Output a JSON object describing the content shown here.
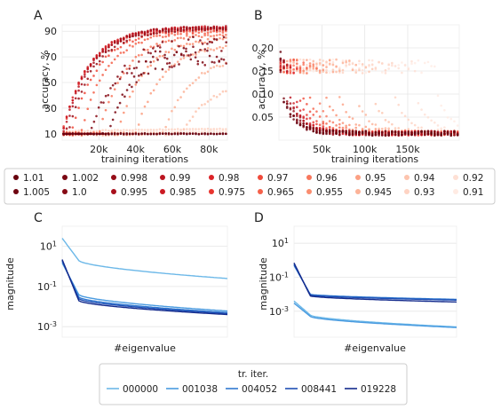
{
  "legend_top": {
    "entries": [
      {
        "label": "1.01",
        "color": "#67000d"
      },
      {
        "label": "1.005",
        "color": "#6e0410"
      },
      {
        "label": "1.002",
        "color": "#7a0712"
      },
      {
        "label": "1.0",
        "color": "#860a15"
      },
      {
        "label": "0.998",
        "color": "#960d18"
      },
      {
        "label": "0.995",
        "color": "#a8101c"
      },
      {
        "label": "0.99",
        "color": "#bb1420"
      },
      {
        "label": "0.985",
        "color": "#cb1a23"
      },
      {
        "label": "0.98",
        "color": "#dc2328"
      },
      {
        "label": "0.975",
        "color": "#e8342e"
      },
      {
        "label": "0.97",
        "color": "#f04a3a"
      },
      {
        "label": "0.965",
        "color": "#f5614a"
      },
      {
        "label": "0.96",
        "color": "#f8775c"
      },
      {
        "label": "0.955",
        "color": "#fa8d6f"
      },
      {
        "label": "0.95",
        "color": "#fca083"
      },
      {
        "label": "0.945",
        "color": "#fcb398"
      },
      {
        "label": "0.94",
        "color": "#fdc4ae"
      },
      {
        "label": "0.93",
        "color": "#fed3c3"
      },
      {
        "label": "0.92",
        "color": "#fee0d4"
      },
      {
        "label": "0.91",
        "color": "#ffebe3"
      }
    ]
  },
  "legend_bottom": {
    "title": "tr. iter.",
    "entries": [
      {
        "label": "000000",
        "color": "#6cb8e8"
      },
      {
        "label": "001038",
        "color": "#4a9be0"
      },
      {
        "label": "004052",
        "color": "#2f78d0"
      },
      {
        "label": "008441",
        "color": "#1f4fb4"
      },
      {
        "label": "019228",
        "color": "#132a8c"
      }
    ]
  },
  "chart_data": [
    {
      "panel": "A",
      "type": "scatter",
      "xlabel": "training iterations",
      "ylabel": "accuracy, %",
      "xlim": [
        0,
        90000
      ],
      "ylim": [
        5,
        95
      ],
      "xticks": [
        "20k",
        "40k",
        "60k",
        "80k"
      ],
      "xtick_values": [
        20000,
        40000,
        60000,
        80000
      ],
      "yticks": [
        "10",
        "30",
        "50",
        "70",
        "90"
      ],
      "ytick_values": [
        10,
        30,
        50,
        70,
        90
      ],
      "grid": true,
      "series": [
        {
          "name": "1.01",
          "behavior": "flat",
          "start": 10,
          "final": 10
        },
        {
          "name": "1.005",
          "behavior": "flat",
          "start": 10,
          "final": 10
        },
        {
          "name": "1.002",
          "behavior": "noisy_rise",
          "start": 10,
          "final": 78,
          "onset": 25000
        },
        {
          "name": "1.0",
          "behavior": "noisy_rise",
          "start": 10,
          "final": 75,
          "onset": 15000
        },
        {
          "name": "0.998",
          "behavior": "rise",
          "start": 10,
          "final": 92,
          "onset": 3000
        },
        {
          "name": "0.995",
          "behavior": "rise",
          "start": 10,
          "final": 93,
          "onset": 1500
        },
        {
          "name": "0.99",
          "behavior": "rise",
          "start": 10,
          "final": 93,
          "onset": 500
        },
        {
          "name": "0.985",
          "behavior": "rise",
          "start": 10,
          "final": 93,
          "onset": 0
        },
        {
          "name": "0.98",
          "behavior": "rise",
          "start": 10,
          "final": 93,
          "onset": 0
        },
        {
          "name": "0.975",
          "behavior": "rise",
          "start": 10,
          "final": 92,
          "onset": 0
        },
        {
          "name": "0.97",
          "behavior": "rise",
          "start": 10,
          "final": 91,
          "onset": 5000
        },
        {
          "name": "0.965",
          "behavior": "rise",
          "start": 10,
          "final": 90,
          "onset": 10000
        },
        {
          "name": "0.96",
          "behavior": "rise",
          "start": 10,
          "final": 88,
          "onset": 20000
        },
        {
          "name": "0.955",
          "behavior": "rise",
          "start": 10,
          "final": 85,
          "onset": 30000
        },
        {
          "name": "0.95",
          "behavior": "rise",
          "start": 10,
          "final": 80,
          "onset": 40000
        },
        {
          "name": "0.945",
          "behavior": "rise",
          "start": 10,
          "final": 70,
          "onset": 55000
        },
        {
          "name": "0.94",
          "behavior": "rise",
          "start": 10,
          "final": 50,
          "onset": 65000
        },
        {
          "name": "0.93",
          "behavior": "flat",
          "start": 12,
          "final": 14
        },
        {
          "name": "0.92",
          "behavior": "flat",
          "start": 10,
          "final": 12
        },
        {
          "name": "0.91",
          "behavior": "flat",
          "start": 10,
          "final": 11
        }
      ]
    },
    {
      "panel": "B",
      "type": "scatter",
      "xlabel": "training iterations",
      "ylabel": "accuracy, %",
      "xlim": [
        0,
        210000
      ],
      "ylim": [
        0,
        0.25
      ],
      "xticks": [
        "50k",
        "100k",
        "150k"
      ],
      "xtick_values": [
        50000,
        100000,
        150000
      ],
      "yticks": [
        "0.05",
        "0.10",
        "0.15",
        "0.20"
      ],
      "ytick_values": [
        0.05,
        0.1,
        0.15,
        0.2
      ],
      "grid": true,
      "series": [
        {
          "name": "1.01",
          "start": 0.18,
          "drop_at": 3000
        },
        {
          "name": "1.005",
          "start": 0.17,
          "drop_at": 4000
        },
        {
          "name": "1.002",
          "start": 0.16,
          "drop_at": 5000
        },
        {
          "name": "1.0",
          "start": 0.16,
          "drop_at": 6000
        },
        {
          "name": "0.998",
          "start": 0.16,
          "drop_at": 8000
        },
        {
          "name": "0.995",
          "start": 0.16,
          "drop_at": 10000
        },
        {
          "name": "0.99",
          "start": 0.16,
          "drop_at": 12000
        },
        {
          "name": "0.985",
          "start": 0.16,
          "drop_at": 15000
        },
        {
          "name": "0.98",
          "start": 0.16,
          "drop_at": 18000
        },
        {
          "name": "0.975",
          "start": 0.16,
          "drop_at": 22000
        },
        {
          "name": "0.97",
          "start": 0.16,
          "drop_at": 28000
        },
        {
          "name": "0.965",
          "start": 0.16,
          "drop_at": 35000
        },
        {
          "name": "0.96",
          "start": 0.16,
          "drop_at": 45000
        },
        {
          "name": "0.955",
          "start": 0.16,
          "drop_at": 55000
        },
        {
          "name": "0.95",
          "start": 0.16,
          "drop_at": 70000
        },
        {
          "name": "0.945",
          "start": 0.16,
          "drop_at": 90000
        },
        {
          "name": "0.94",
          "start": 0.16,
          "drop_at": 110000
        },
        {
          "name": "0.93",
          "start": 0.16,
          "drop_at": 135000
        },
        {
          "name": "0.92",
          "start": 0.16,
          "drop_at": 160000
        },
        {
          "name": "0.91",
          "start": 0.16,
          "drop_at": 185000
        }
      ]
    },
    {
      "panel": "C",
      "type": "line",
      "xlabel": "#eigenvalue",
      "ylabel": "magnitude",
      "yscale": "log",
      "ylim": [
        0.0003,
        100
      ],
      "yticks": [
        "10^1",
        "10^-1",
        "10^-3"
      ],
      "ytick_values": [
        10,
        0.1,
        0.001
      ],
      "grid": true,
      "n_points": 100,
      "series": [
        {
          "name": "000000",
          "start": 25,
          "knee": 2.0,
          "end": 0.25
        },
        {
          "name": "001038",
          "start": 1.5,
          "knee": 0.04,
          "end": 0.006
        },
        {
          "name": "004052",
          "start": 1.8,
          "knee": 0.03,
          "end": 0.005
        },
        {
          "name": "008441",
          "start": 2.0,
          "knee": 0.025,
          "end": 0.0045
        },
        {
          "name": "019228",
          "start": 2.2,
          "knee": 0.02,
          "end": 0.004
        }
      ]
    },
    {
      "panel": "D",
      "type": "line",
      "xlabel": "#eigenvalue",
      "ylabel": "magnitude",
      "yscale": "log",
      "ylim": [
        3e-05,
        100
      ],
      "yticks": [
        "10^1",
        "10^-1",
        "10^-3"
      ],
      "ytick_values": [
        10,
        0.1,
        0.001
      ],
      "grid": true,
      "n_points": 100,
      "series": [
        {
          "name": "000000",
          "start": 0.004,
          "knee": 0.0006,
          "end": 0.00012
        },
        {
          "name": "001038",
          "start": 0.003,
          "knee": 0.0005,
          "end": 0.00011
        },
        {
          "name": "004052",
          "start": 0.5,
          "knee": 0.01,
          "end": 0.005
        },
        {
          "name": "008441",
          "start": 0.6,
          "knee": 0.009,
          "end": 0.0045
        },
        {
          "name": "019228",
          "start": 0.7,
          "knee": 0.008,
          "end": 0.0035
        }
      ]
    }
  ],
  "panels": {
    "A": {
      "label": "A"
    },
    "B": {
      "label": "B"
    },
    "C": {
      "label": "C"
    },
    "D": {
      "label": "D"
    }
  }
}
